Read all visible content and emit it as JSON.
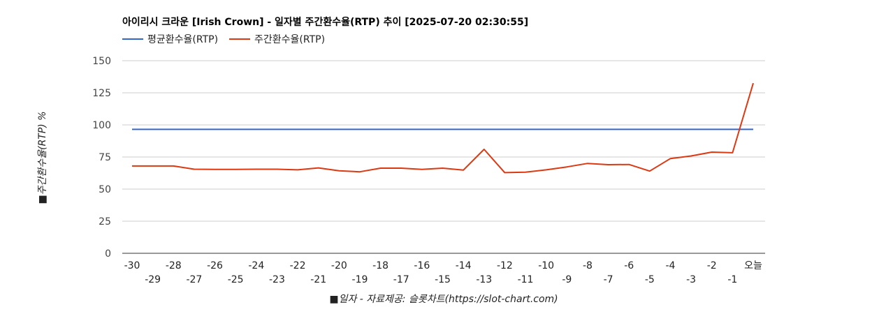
{
  "chart_data": {
    "type": "line",
    "title": "아이리시 크라운 [Irish Crown] - 일자별 주간환수율(RTP) 추이 [2025-07-20 02:30:55]",
    "xlabel": "■일자 - 자료제공: 슬롯차트(https://slot-chart.com)",
    "ylabel": "■주간환수율(RTP) %",
    "ylim": [
      0,
      150
    ],
    "yticks": [
      "0",
      "25",
      "50",
      "75",
      "100",
      "125",
      "150"
    ],
    "categories": [
      "-30",
      "-29",
      "-28",
      "-27",
      "-26",
      "-25",
      "-24",
      "-23",
      "-22",
      "-21",
      "-20",
      "-19",
      "-18",
      "-17",
      "-16",
      "-15",
      "-14",
      "-13",
      "-12",
      "-11",
      "-10",
      "-9",
      "-8",
      "-7",
      "-6",
      "-5",
      "-4",
      "-3",
      "-2",
      "-1",
      "오늘"
    ],
    "grid": true,
    "legend_position": "top-left",
    "series": [
      {
        "name": "평균환수율(RTP)",
        "color": "#3366cc",
        "values": [
          96.5,
          96.5,
          96.5,
          96.5,
          96.5,
          96.5,
          96.5,
          96.5,
          96.5,
          96.5,
          96.5,
          96.5,
          96.5,
          96.5,
          96.5,
          96.5,
          96.5,
          96.5,
          96.5,
          96.5,
          96.5,
          96.5,
          96.5,
          96.5,
          96.5,
          96.5,
          96.5,
          96.5,
          96.5,
          96.5,
          96.5
        ]
      },
      {
        "name": "주간환수율(RTP)",
        "color": "#dc3912",
        "values": [
          68,
          68,
          68,
          65.5,
          65.3,
          65.3,
          65.5,
          65.5,
          65,
          66.5,
          64.3,
          63.5,
          66.3,
          66.3,
          65.3,
          66.3,
          64.8,
          81,
          62.8,
          63.2,
          65,
          67.3,
          70,
          69,
          69.2,
          64,
          73.8,
          75.8,
          78.8,
          78.3,
          132.5
        ]
      }
    ]
  }
}
